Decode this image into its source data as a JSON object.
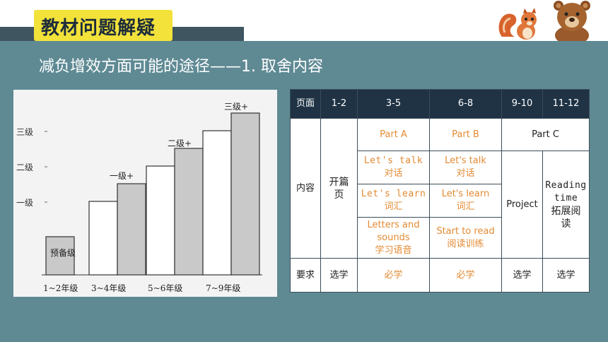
{
  "header": {
    "title": "教材问题解疑",
    "subtitle": "减负增效方面可能的途径——1. 取舍内容"
  },
  "mascots": [
    "squirrel-icon",
    "bear-icon"
  ],
  "colors": {
    "background": "#5f8a94",
    "title_box": "#f2e23a",
    "dark_band": "#3f5560",
    "table_header": "#1f3345",
    "orange_text": "#e38a33"
  },
  "level_chart": {
    "categories": [
      "1~2年级",
      "3~4年级",
      "5~6年级",
      "7~9年级"
    ],
    "y_ticks": [
      "三级",
      "二级",
      "一级"
    ],
    "bar_labels": [
      "预备级",
      "一级+",
      "二级+",
      "三级+"
    ],
    "bars": [
      {
        "group": "1~2年级",
        "level": 0.0,
        "shade": "gray"
      },
      {
        "group": "3~4年级",
        "level": 1.0,
        "shade": "white"
      },
      {
        "group": "3~4年级",
        "level": 1.5,
        "shade": "gray"
      },
      {
        "group": "5~6年级",
        "level": 2.0,
        "shade": "white"
      },
      {
        "group": "5~6年级",
        "level": 2.5,
        "shade": "gray"
      },
      {
        "group": "7~9年级",
        "level": 3.0,
        "shade": "white"
      },
      {
        "group": "7~9年级",
        "level": 3.5,
        "shade": "gray"
      }
    ]
  },
  "table": {
    "header": [
      "页面",
      "1-2",
      "3-5",
      "6-8",
      "9-10",
      "11-12"
    ],
    "row_label_content": "内容",
    "cover_page": "开篇页",
    "part_a": "Part A",
    "part_b": "Part B",
    "part_c": "Part C",
    "a_rows": [
      {
        "en": "Let's talk",
        "zh": "对话"
      },
      {
        "en": "Let's learn",
        "zh": "词汇"
      },
      {
        "en": "Letters and sounds",
        "zh": "学习语音"
      }
    ],
    "b_rows": [
      {
        "en": "Let's talk",
        "zh": "对话"
      },
      {
        "en": "Let's learn",
        "zh": "词汇"
      },
      {
        "en": "Start to read",
        "zh": "阅读训练"
      }
    ],
    "project": "Project",
    "reading_en": "Reading time",
    "reading_zh": "拓展阅读",
    "req_label": "要求",
    "req_values": [
      "选学",
      "必学",
      "必学",
      "选学",
      "选学"
    ]
  }
}
